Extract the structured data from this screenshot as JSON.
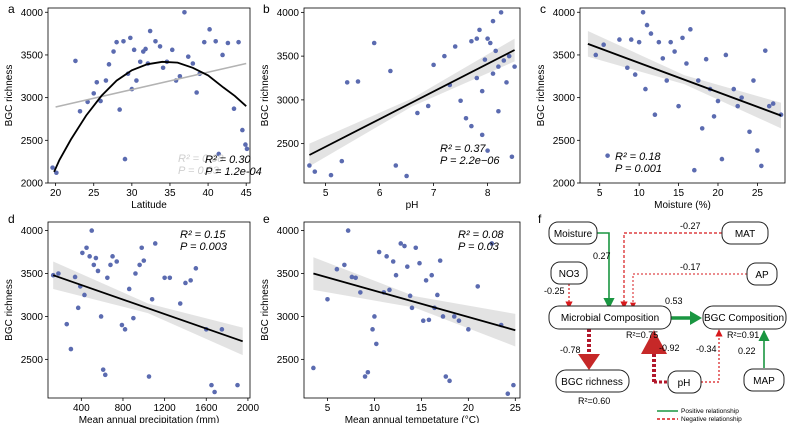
{
  "figure": {
    "panel_a": "a",
    "panel_b": "b",
    "panel_c": "c",
    "panel_d": "d",
    "panel_e": "e",
    "panel_f": "f"
  },
  "chart_data": [
    {
      "id": "a",
      "type": "scatter",
      "xlabel": "Latitude",
      "ylabel": "BGC richness",
      "xlim": [
        19,
        45.5
      ],
      "ylim": [
        2000,
        4050
      ],
      "xticks": [
        20,
        25,
        30,
        35,
        40,
        45
      ],
      "yticks": [
        2000,
        2500,
        3000,
        3500,
        4000
      ],
      "points": [
        [
          19.6,
          2180
        ],
        [
          20.1,
          2120
        ],
        [
          22.6,
          3430
        ],
        [
          23.2,
          2840
        ],
        [
          24.2,
          2950
        ],
        [
          25.0,
          3050
        ],
        [
          25.4,
          3180
        ],
        [
          25.9,
          2960
        ],
        [
          26.6,
          3200
        ],
        [
          27.0,
          3390
        ],
        [
          27.6,
          3540
        ],
        [
          28.0,
          3650
        ],
        [
          28.4,
          2860
        ],
        [
          28.9,
          3660
        ],
        [
          29.1,
          2280
        ],
        [
          29.5,
          3280
        ],
        [
          29.8,
          3700
        ],
        [
          30.0,
          3100
        ],
        [
          30.3,
          3560
        ],
        [
          30.6,
          3200
        ],
        [
          31.1,
          3420
        ],
        [
          31.5,
          3540
        ],
        [
          31.8,
          3570
        ],
        [
          32.1,
          3400
        ],
        [
          32.4,
          3780
        ],
        [
          33.1,
          3660
        ],
        [
          33.7,
          3600
        ],
        [
          34.1,
          3350
        ],
        [
          34.6,
          3420
        ],
        [
          35.3,
          3560
        ],
        [
          35.8,
          3200
        ],
        [
          36.3,
          3250
        ],
        [
          36.9,
          4000
        ],
        [
          37.4,
          3480
        ],
        [
          38.0,
          3400
        ],
        [
          38.5,
          3060
        ],
        [
          38.9,
          3280
        ],
        [
          39.5,
          3650
        ],
        [
          40.2,
          3800
        ],
        [
          41.0,
          3660
        ],
        [
          41.4,
          2340
        ],
        [
          41.9,
          3500
        ],
        [
          42.6,
          3640
        ],
        [
          43.4,
          2870
        ],
        [
          44.0,
          3650
        ],
        [
          44.5,
          2620
        ],
        [
          44.9,
          2450
        ],
        [
          45.1,
          2400
        ]
      ],
      "fits": [
        {
          "color": "#000000",
          "kind": "quadratic",
          "x": [
            19.8,
            20.5,
            22,
            24,
            26,
            28,
            30,
            32,
            34,
            36,
            38,
            40,
            42,
            43.5,
            45
          ],
          "y": [
            2130,
            2270,
            2510,
            2790,
            3020,
            3200,
            3320,
            3390,
            3420,
            3410,
            3350,
            3260,
            3120,
            3020,
            2900
          ]
        },
        {
          "color": "#b3b3b3",
          "kind": "linear",
          "x": [
            20,
            45
          ],
          "y": [
            2890,
            3400
          ]
        }
      ],
      "stats": [
        {
          "r2": "R² = 0.08",
          "p": "P = 0.03",
          "color": "#cfcfcf"
        },
        {
          "r2": "R² = 0.30",
          "p": "P = 1.2e-04",
          "color": "#000000"
        }
      ]
    },
    {
      "id": "b",
      "type": "scatter",
      "xlabel": "pH",
      "ylabel": "BGC richness",
      "xlim": [
        4.6,
        8.6
      ],
      "ylim": [
        2050,
        4050
      ],
      "xticks": [
        5,
        6,
        7,
        8
      ],
      "yticks": [
        2500,
        3000,
        3500,
        4000
      ],
      "points": [
        [
          4.7,
          2250
        ],
        [
          4.8,
          2180
        ],
        [
          5.1,
          2140
        ],
        [
          5.3,
          2300
        ],
        [
          5.4,
          3200
        ],
        [
          5.6,
          3210
        ],
        [
          5.9,
          3650
        ],
        [
          6.2,
          3330
        ],
        [
          6.3,
          2250
        ],
        [
          6.5,
          2130
        ],
        [
          6.7,
          2850
        ],
        [
          6.9,
          2930
        ],
        [
          7.0,
          3400
        ],
        [
          7.2,
          3500
        ],
        [
          7.3,
          3170
        ],
        [
          7.4,
          3610
        ],
        [
          7.5,
          2990
        ],
        [
          7.6,
          2790
        ],
        [
          7.7,
          3670
        ],
        [
          7.7,
          2700
        ],
        [
          7.8,
          3250
        ],
        [
          7.8,
          3700
        ],
        [
          7.85,
          3800
        ],
        [
          7.9,
          2600
        ],
        [
          7.9,
          3100
        ],
        [
          7.95,
          3460
        ],
        [
          8.0,
          3700
        ],
        [
          8.0,
          2420
        ],
        [
          8.05,
          3650
        ],
        [
          8.1,
          3300
        ],
        [
          8.1,
          3900
        ],
        [
          8.15,
          3560
        ],
        [
          8.2,
          2870
        ],
        [
          8.2,
          3380
        ],
        [
          8.25,
          4000
        ],
        [
          8.3,
          3450
        ],
        [
          8.35,
          3200
        ],
        [
          8.4,
          3500
        ],
        [
          8.45,
          2350
        ],
        [
          8.5,
          3380
        ]
      ],
      "fits": [
        {
          "color": "#000000",
          "kind": "linear",
          "x": [
            4.7,
            8.5
          ],
          "y": [
            2370,
            3570
          ]
        }
      ],
      "stats": [
        {
          "r2": "R² = 0.37",
          "p": "P = 2.2e−06",
          "color": "#000000"
        }
      ]
    },
    {
      "id": "c",
      "type": "scatter",
      "xlabel": "Moisture (%)",
      "ylabel": "BGC richness",
      "xlim": [
        2.5,
        28.5
      ],
      "ylim": [
        2000,
        4050
      ],
      "xticks": [
        5,
        10,
        15,
        20,
        25
      ],
      "yticks": [
        2000,
        2500,
        3000,
        3500,
        4000
      ],
      "points": [
        [
          4.5,
          3500
        ],
        [
          5.5,
          3620
        ],
        [
          6.0,
          2320
        ],
        [
          7.5,
          3680
        ],
        [
          8.5,
          3350
        ],
        [
          9.0,
          3680
        ],
        [
          9.5,
          3270
        ],
        [
          10.0,
          3650
        ],
        [
          10.5,
          4000
        ],
        [
          10.8,
          3100
        ],
        [
          11.0,
          3850
        ],
        [
          11.5,
          3750
        ],
        [
          12.0,
          2800
        ],
        [
          12.5,
          3650
        ],
        [
          13.0,
          3460
        ],
        [
          13.5,
          3200
        ],
        [
          14.0,
          3650
        ],
        [
          14.5,
          3540
        ],
        [
          15.0,
          2900
        ],
        [
          15.5,
          3700
        ],
        [
          16.0,
          3400
        ],
        [
          16.5,
          3800
        ],
        [
          17.0,
          2150
        ],
        [
          17.5,
          3200
        ],
        [
          18.0,
          2640
        ],
        [
          18.5,
          3450
        ],
        [
          19.0,
          3100
        ],
        [
          19.5,
          2780
        ],
        [
          20.0,
          2960
        ],
        [
          20.5,
          2280
        ],
        [
          21.0,
          3500
        ],
        [
          22.0,
          3100
        ],
        [
          22.5,
          2900
        ],
        [
          23.0,
          3000
        ],
        [
          24.0,
          2600
        ],
        [
          24.5,
          3200
        ],
        [
          25.0,
          2380
        ],
        [
          25.5,
          2200
        ],
        [
          26.0,
          3550
        ],
        [
          26.5,
          2900
        ],
        [
          27.0,
          2930
        ],
        [
          28.0,
          2800
        ]
      ],
      "fits": [
        {
          "color": "#000000",
          "kind": "linear",
          "x": [
            3.5,
            28
          ],
          "y": [
            3630,
            2790
          ]
        }
      ],
      "stats": [
        {
          "r2": "R² = 0.18",
          "p": "P = 0.001",
          "color": "#000000"
        }
      ]
    },
    {
      "id": "d",
      "type": "scatter",
      "xlabel": "Mean annual precipitation (mm)",
      "ylabel": "BGC richness",
      "xlim": [
        80,
        2020
      ],
      "ylim": [
        2050,
        4100
      ],
      "xticks": [
        400,
        800,
        1200,
        1600,
        2000
      ],
      "yticks": [
        2500,
        3000,
        3500,
        4000
      ],
      "points": [
        [
          130,
          3480
        ],
        [
          180,
          3500
        ],
        [
          260,
          2910
        ],
        [
          300,
          2620
        ],
        [
          340,
          3460
        ],
        [
          370,
          3100
        ],
        [
          390,
          3350
        ],
        [
          410,
          3740
        ],
        [
          430,
          3250
        ],
        [
          450,
          3800
        ],
        [
          480,
          3700
        ],
        [
          500,
          4000
        ],
        [
          520,
          3600
        ],
        [
          540,
          3680
        ],
        [
          560,
          3530
        ],
        [
          590,
          3000
        ],
        [
          610,
          2380
        ],
        [
          630,
          2320
        ],
        [
          650,
          3450
        ],
        [
          680,
          3600
        ],
        [
          700,
          3700
        ],
        [
          740,
          3640
        ],
        [
          790,
          2900
        ],
        [
          820,
          2850
        ],
        [
          860,
          3320
        ],
        [
          900,
          2980
        ],
        [
          920,
          3500
        ],
        [
          960,
          3600
        ],
        [
          980,
          3800
        ],
        [
          1000,
          3650
        ],
        [
          1050,
          2300
        ],
        [
          1080,
          3200
        ],
        [
          1110,
          3850
        ],
        [
          1200,
          3450
        ],
        [
          1250,
          3450
        ],
        [
          1350,
          3150
        ],
        [
          1400,
          3390
        ],
        [
          1450,
          3420
        ],
        [
          1500,
          3560
        ],
        [
          1600,
          2850
        ],
        [
          1650,
          2200
        ],
        [
          1680,
          2120
        ],
        [
          1750,
          2850
        ],
        [
          1900,
          2200
        ]
      ],
      "fits": [
        {
          "color": "#000000",
          "kind": "linear",
          "x": [
            130,
            1950
          ],
          "y": [
            3480,
            2710
          ]
        }
      ],
      "stats": [
        {
          "r2": "R² = 0.15",
          "p": "P = 0.003",
          "color": "#000000"
        }
      ]
    },
    {
      "id": "e",
      "type": "scatter",
      "xlabel": "Mean annual tempetature (°C)",
      "ylabel": "BGC richness",
      "xlim": [
        2.5,
        25.5
      ],
      "ylim": [
        2050,
        4100
      ],
      "xticks": [
        5,
        10,
        15,
        20,
        25
      ],
      "yticks": [
        2500,
        3000,
        3500,
        4000
      ],
      "points": [
        [
          3.5,
          2400
        ],
        [
          5.0,
          3200
        ],
        [
          6.0,
          3550
        ],
        [
          6.8,
          3600
        ],
        [
          7.2,
          4000
        ],
        [
          7.6,
          3460
        ],
        [
          8.0,
          3450
        ],
        [
          8.5,
          3280
        ],
        [
          9.0,
          2300
        ],
        [
          9.3,
          2350
        ],
        [
          9.8,
          2850
        ],
        [
          10.0,
          3000
        ],
        [
          10.2,
          2680
        ],
        [
          10.5,
          3750
        ],
        [
          11.0,
          3280
        ],
        [
          11.3,
          3700
        ],
        [
          11.6,
          3310
        ],
        [
          12.0,
          3640
        ],
        [
          12.3,
          3480
        ],
        [
          12.8,
          3850
        ],
        [
          13.2,
          3820
        ],
        [
          13.5,
          3580
        ],
        [
          13.8,
          3240
        ],
        [
          14.0,
          3100
        ],
        [
          14.4,
          3800
        ],
        [
          14.8,
          3620
        ],
        [
          15.2,
          2950
        ],
        [
          15.5,
          3420
        ],
        [
          15.8,
          2960
        ],
        [
          16.1,
          3480
        ],
        [
          16.4,
          3100
        ],
        [
          16.7,
          3250
        ],
        [
          17.0,
          3650
        ],
        [
          17.3,
          3000
        ],
        [
          17.6,
          2300
        ],
        [
          18.0,
          2250
        ],
        [
          18.5,
          3000
        ],
        [
          19.0,
          2950
        ],
        [
          20.0,
          2850
        ],
        [
          21.0,
          3350
        ],
        [
          22.5,
          3850
        ],
        [
          23.5,
          2900
        ],
        [
          24.2,
          2100
        ],
        [
          24.8,
          2200
        ]
      ],
      "fits": [
        {
          "color": "#000000",
          "kind": "linear",
          "x": [
            3.5,
            25
          ],
          "y": [
            3500,
            2840
          ]
        }
      ],
      "stats": [
        {
          "r2": "R² = 0.08",
          "p": "P = 0.03",
          "color": "#000000"
        }
      ]
    }
  ],
  "sem": {
    "nodes": {
      "moisture": "Moisture",
      "mat": "MAT",
      "no3": "NO3",
      "ap": "AP",
      "microbial": "Microbial Composition",
      "bgc_comp": "BGC Composition",
      "bgc_rich": "BGC richness",
      "ph": "pH",
      "map": "MAP"
    },
    "r2": {
      "microbial": "R²=0.75",
      "bgc_comp": "R²=0.91",
      "bgc_rich": "R²=0.60"
    },
    "coefficients": {
      "moisture_microbial": "0.27",
      "mat_microbial": "-0.27",
      "ap_microbial": "-0.17",
      "no3_microbial": "-0.25",
      "microbial_comp": "0.53",
      "microbial_rich": "-0.78",
      "ph_microbial": "-0.92",
      "ph_comp": "-0.34",
      "map_comp": "0.22"
    },
    "legend": {
      "positive": "Positive relationship",
      "negative": "Negative relationship"
    },
    "colors": {
      "positive": "#1a9641",
      "negative": "#d7191c",
      "dark_negative": "#b2182b"
    }
  },
  "colors": {
    "point": "#5b6bb0",
    "band": "#d9d9d9"
  }
}
